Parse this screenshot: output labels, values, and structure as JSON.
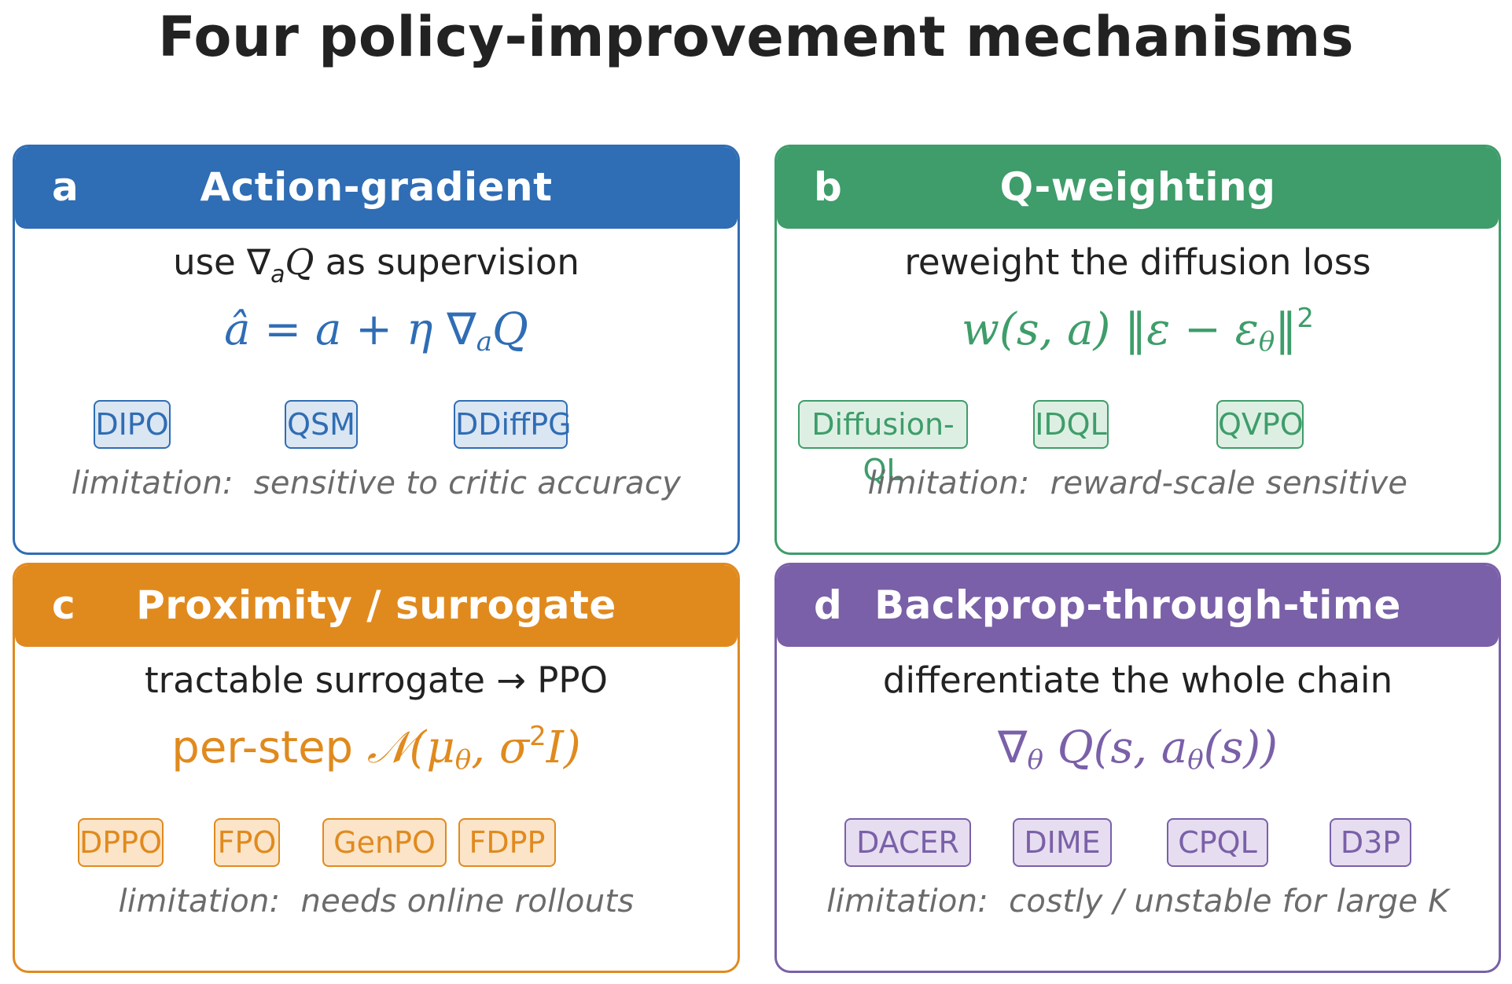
{
  "title": "Four policy-improvement mechanisms",
  "colors": {
    "action_gradient": "#2f6db4",
    "q_weighting": "#3e9d6a",
    "proximity": "#e08a1e",
    "bptt": "#7a60a8"
  },
  "panels": [
    {
      "letter": "a",
      "title": "Action-gradient",
      "description": {
        "pre": "use ",
        "nabla": "∇",
        "sub": "a",
        "q": "Q",
        "post": " as supervision"
      },
      "formula": "â = a + η ∇ₐQ",
      "methods": [
        "DIPO",
        "QSM",
        "DDiffPG"
      ],
      "limitation_label": "limitation:",
      "limitation": "sensitive to critic accuracy"
    },
    {
      "letter": "b",
      "title": "Q-weighting",
      "description": "reweight the diffusion loss",
      "formula": "w(s, a) ‖ε − ε_θ‖²",
      "methods": [
        "Diffusion-QL",
        "IDQL",
        "QVPO"
      ],
      "limitation_label": "limitation:",
      "limitation": "reward-scale sensitive"
    },
    {
      "letter": "c",
      "title": "Proximity / surrogate",
      "description": "tractable surrogate → PPO",
      "formula": "per-step 𝒩(μ_θ, σ²I)",
      "methods": [
        "DPPO",
        "FPO",
        "GenPO",
        "FDPP"
      ],
      "limitation_label": "limitation:",
      "limitation": "needs online rollouts"
    },
    {
      "letter": "d",
      "title": "Backprop-through-time",
      "description": "differentiate the whole chain",
      "formula": "∇_θ Q(s, a_θ(s))",
      "methods": [
        "DACER",
        "DIME",
        "CPQL",
        "D3P"
      ],
      "limitation_label": "limitation:",
      "limitation": "costly / unstable for large K"
    }
  ]
}
